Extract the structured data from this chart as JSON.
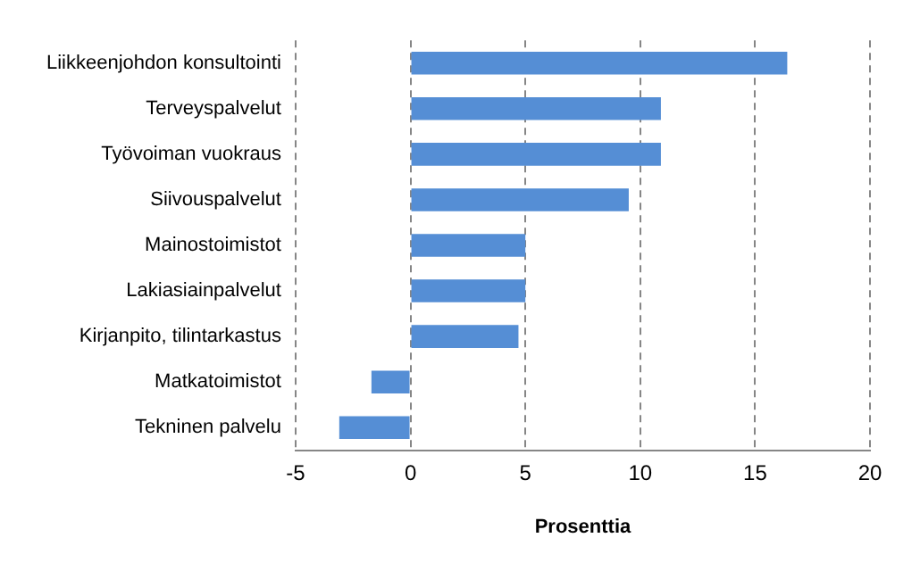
{
  "chart_data": {
    "type": "bar",
    "orientation": "horizontal",
    "xlabel": "Prosenttia",
    "categories": [
      "Liikkeenjohdon konsultointi",
      "Terveyspalvelut",
      "Työvoiman vuokraus",
      "Siivouspalvelut",
      "Mainostoimistot",
      "Lakiasiainpalvelut",
      "Kirjanpito, tilintarkastus",
      "Matkatoimistot",
      "Tekninen palvelu"
    ],
    "values": [
      16.4,
      10.9,
      10.9,
      9.5,
      5.0,
      5.0,
      4.7,
      -1.7,
      -3.1
    ],
    "color": "#558ed5",
    "xlim": [
      -5,
      20
    ],
    "xticks": [
      -5,
      0,
      5,
      10,
      15,
      20
    ],
    "grid": "x",
    "legend": false
  }
}
